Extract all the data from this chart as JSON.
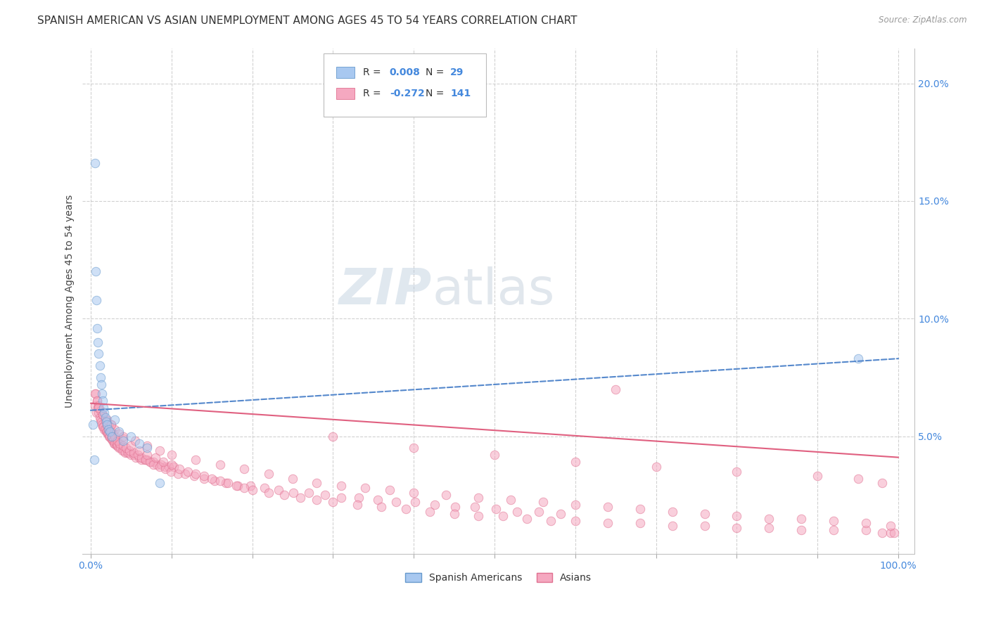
{
  "title": "SPANISH AMERICAN VS ASIAN UNEMPLOYMENT AMONG AGES 45 TO 54 YEARS CORRELATION CHART",
  "source": "Source: ZipAtlas.com",
  "ylabel": "Unemployment Among Ages 45 to 54 years",
  "xlim": [
    -0.01,
    1.02
  ],
  "ylim": [
    0.0,
    0.215
  ],
  "yticks": [
    0.05,
    0.1,
    0.15,
    0.2
  ],
  "ytick_labels": [
    "5.0%",
    "10.0%",
    "15.0%",
    "20.0%"
  ],
  "xticks": [
    0.0,
    0.1,
    0.2,
    0.3,
    0.4,
    0.5,
    0.6,
    0.7,
    0.8,
    0.9,
    1.0
  ],
  "xtick_labels": [
    "0.0%",
    "",
    "",
    "",
    "",
    "",
    "",
    "",
    "",
    "",
    "100.0%"
  ],
  "spanish_color": "#a8c8f0",
  "asian_color": "#f5a8c0",
  "spanish_edge_color": "#6699cc",
  "asian_edge_color": "#e07090",
  "trendline_spanish_color": "#5588cc",
  "trendline_asian_color": "#e06080",
  "background_color": "#ffffff",
  "grid_color": "#cccccc",
  "title_fontsize": 11,
  "axis_label_fontsize": 10,
  "tick_fontsize": 10,
  "marker_size": 9,
  "marker_alpha": 0.55,
  "sa_trend_x0": 0.0,
  "sa_trend_y0": 0.061,
  "sa_trend_x1": 1.0,
  "sa_trend_y1": 0.083,
  "as_trend_x0": 0.0,
  "as_trend_y0": 0.064,
  "as_trend_x1": 1.0,
  "as_trend_y1": 0.041,
  "sa_x": [
    0.003,
    0.004,
    0.005,
    0.006,
    0.007,
    0.008,
    0.009,
    0.01,
    0.011,
    0.012,
    0.013,
    0.014,
    0.015,
    0.016,
    0.017,
    0.018,
    0.019,
    0.02,
    0.022,
    0.024,
    0.026,
    0.03,
    0.035,
    0.04,
    0.05,
    0.06,
    0.07,
    0.085,
    0.95
  ],
  "sa_y": [
    0.055,
    0.04,
    0.166,
    0.12,
    0.108,
    0.096,
    0.09,
    0.085,
    0.08,
    0.075,
    0.072,
    0.068,
    0.065,
    0.062,
    0.06,
    0.058,
    0.056,
    0.055,
    0.053,
    0.052,
    0.05,
    0.057,
    0.052,
    0.048,
    0.05,
    0.047,
    0.045,
    0.03,
    0.083
  ],
  "as_x": [
    0.005,
    0.006,
    0.007,
    0.008,
    0.009,
    0.01,
    0.011,
    0.012,
    0.013,
    0.014,
    0.015,
    0.016,
    0.017,
    0.018,
    0.019,
    0.02,
    0.021,
    0.022,
    0.023,
    0.024,
    0.025,
    0.026,
    0.027,
    0.028,
    0.029,
    0.03,
    0.031,
    0.032,
    0.033,
    0.035,
    0.037,
    0.039,
    0.041,
    0.043,
    0.045,
    0.047,
    0.05,
    0.053,
    0.056,
    0.06,
    0.063,
    0.067,
    0.07,
    0.074,
    0.078,
    0.082,
    0.087,
    0.092,
    0.097,
    0.103,
    0.005,
    0.008,
    0.01,
    0.012,
    0.015,
    0.018,
    0.02,
    0.023,
    0.025,
    0.028,
    0.03,
    0.033,
    0.036,
    0.04,
    0.044,
    0.048,
    0.053,
    0.058,
    0.063,
    0.068,
    0.073,
    0.078,
    0.085,
    0.092,
    0.099,
    0.108,
    0.117,
    0.128,
    0.14,
    0.153,
    0.167,
    0.182,
    0.198,
    0.215,
    0.233,
    0.251,
    0.27,
    0.29,
    0.31,
    0.332,
    0.355,
    0.378,
    0.402,
    0.426,
    0.451,
    0.476,
    0.502,
    0.528,
    0.555,
    0.582,
    0.01,
    0.015,
    0.02,
    0.025,
    0.03,
    0.035,
    0.04,
    0.05,
    0.06,
    0.07,
    0.08,
    0.09,
    0.1,
    0.11,
    0.12,
    0.13,
    0.14,
    0.15,
    0.16,
    0.17,
    0.18,
    0.19,
    0.2,
    0.22,
    0.24,
    0.26,
    0.28,
    0.3,
    0.33,
    0.36,
    0.39,
    0.42,
    0.45,
    0.48,
    0.51,
    0.54,
    0.57,
    0.6,
    0.64,
    0.68,
    0.72,
    0.76,
    0.8,
    0.84,
    0.88,
    0.92,
    0.96,
    0.98,
    0.99,
    0.995,
    0.025,
    0.04,
    0.055,
    0.07,
    0.085,
    0.1,
    0.13,
    0.16,
    0.19,
    0.22,
    0.25,
    0.28,
    0.31,
    0.34,
    0.37,
    0.4,
    0.44,
    0.48,
    0.52,
    0.56,
    0.6,
    0.64,
    0.68,
    0.72,
    0.76,
    0.8,
    0.84,
    0.88,
    0.92,
    0.96,
    0.99,
    0.3,
    0.4,
    0.5,
    0.6,
    0.7,
    0.8,
    0.9,
    0.95,
    0.98,
    0.65
  ],
  "as_y": [
    0.063,
    0.068,
    0.06,
    0.065,
    0.062,
    0.06,
    0.058,
    0.057,
    0.056,
    0.055,
    0.054,
    0.054,
    0.053,
    0.053,
    0.052,
    0.052,
    0.051,
    0.051,
    0.05,
    0.05,
    0.049,
    0.049,
    0.048,
    0.048,
    0.047,
    0.047,
    0.047,
    0.046,
    0.046,
    0.045,
    0.045,
    0.044,
    0.044,
    0.043,
    0.043,
    0.043,
    0.042,
    0.042,
    0.041,
    0.041,
    0.04,
    0.04,
    0.04,
    0.039,
    0.039,
    0.038,
    0.038,
    0.037,
    0.037,
    0.037,
    0.068,
    0.065,
    0.063,
    0.061,
    0.059,
    0.057,
    0.055,
    0.054,
    0.052,
    0.051,
    0.05,
    0.048,
    0.047,
    0.046,
    0.045,
    0.044,
    0.043,
    0.042,
    0.041,
    0.04,
    0.039,
    0.038,
    0.037,
    0.036,
    0.035,
    0.034,
    0.034,
    0.033,
    0.032,
    0.031,
    0.03,
    0.029,
    0.029,
    0.028,
    0.027,
    0.026,
    0.026,
    0.025,
    0.024,
    0.024,
    0.023,
    0.022,
    0.022,
    0.021,
    0.02,
    0.02,
    0.019,
    0.018,
    0.018,
    0.017,
    0.062,
    0.059,
    0.057,
    0.055,
    0.053,
    0.051,
    0.049,
    0.046,
    0.044,
    0.042,
    0.041,
    0.039,
    0.038,
    0.036,
    0.035,
    0.034,
    0.033,
    0.032,
    0.031,
    0.03,
    0.029,
    0.028,
    0.027,
    0.026,
    0.025,
    0.024,
    0.023,
    0.022,
    0.021,
    0.02,
    0.019,
    0.018,
    0.017,
    0.016,
    0.016,
    0.015,
    0.014,
    0.014,
    0.013,
    0.013,
    0.012,
    0.012,
    0.011,
    0.011,
    0.01,
    0.01,
    0.01,
    0.009,
    0.009,
    0.009,
    0.055,
    0.05,
    0.048,
    0.046,
    0.044,
    0.042,
    0.04,
    0.038,
    0.036,
    0.034,
    0.032,
    0.03,
    0.029,
    0.028,
    0.027,
    0.026,
    0.025,
    0.024,
    0.023,
    0.022,
    0.021,
    0.02,
    0.019,
    0.018,
    0.017,
    0.016,
    0.015,
    0.015,
    0.014,
    0.013,
    0.012,
    0.05,
    0.045,
    0.042,
    0.039,
    0.037,
    0.035,
    0.033,
    0.032,
    0.03,
    0.07
  ]
}
